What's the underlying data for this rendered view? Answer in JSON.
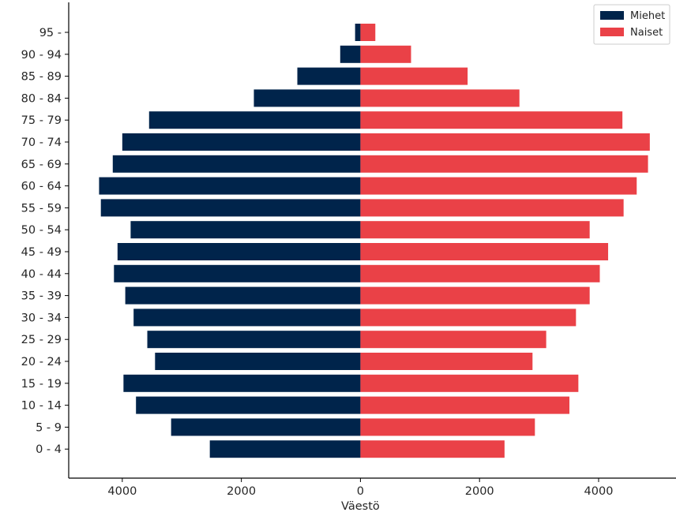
{
  "chart_data": {
    "type": "bar",
    "orientation": "horizontal",
    "layout": "population-pyramid",
    "title": "",
    "xlabel": "Väestö",
    "ylabel": "",
    "xlim": [
      -4900,
      5300
    ],
    "x_ticks": [
      -4000,
      -2000,
      0,
      2000,
      4000
    ],
    "x_tick_labels": [
      "4000",
      "2000",
      "0",
      "2000",
      "4000"
    ],
    "categories": [
      "0 - 4",
      "5 - 9",
      "10 - 14",
      "15 - 19",
      "20 - 24",
      "25 - 29",
      "30 - 34",
      "35 - 39",
      "40 - 44",
      "45 - 49",
      "50 - 54",
      "55 - 59",
      "60 - 64",
      "65 - 69",
      "70 - 74",
      "75 - 79",
      "80 - 84",
      "85 - 89",
      "90 - 94",
      "95 -"
    ],
    "series": [
      {
        "name": "Miehet",
        "color": "#00244b",
        "side": "left",
        "values": [
          2530,
          3180,
          3770,
          3980,
          3450,
          3580,
          3810,
          3950,
          4140,
          4080,
          3860,
          4360,
          4390,
          4160,
          4000,
          3550,
          1790,
          1060,
          340,
          90
        ]
      },
      {
        "name": "Naiset",
        "color": "#ea4147",
        "side": "right",
        "values": [
          2420,
          2930,
          3510,
          3660,
          2890,
          3120,
          3620,
          3850,
          4020,
          4160,
          3850,
          4420,
          4640,
          4830,
          4860,
          4400,
          2670,
          1800,
          850,
          250
        ]
      }
    ],
    "legend": {
      "position": "top-right",
      "entries": [
        "Miehet",
        "Naiset"
      ]
    },
    "grid": false,
    "spines": [
      "left",
      "bottom"
    ]
  }
}
